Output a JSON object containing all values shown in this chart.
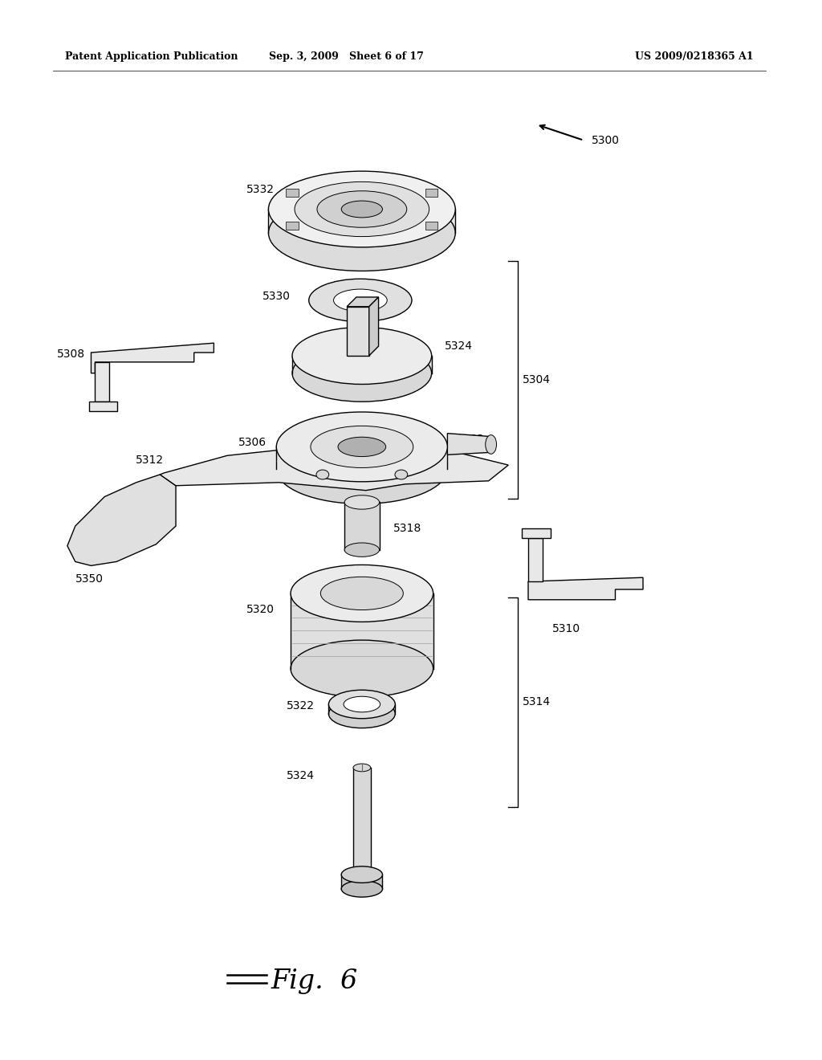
{
  "background_color": "#ffffff",
  "header_left": "Patent Application Publication",
  "header_center": "Sep. 3, 2009   Sheet 6 of 17",
  "header_right": "US 2009/0218365 A1",
  "figure_label": "Fig. 6",
  "line_color": "#000000",
  "text_color": "#000000",
  "lw_main": 1.0,
  "lw_thin": 0.7
}
